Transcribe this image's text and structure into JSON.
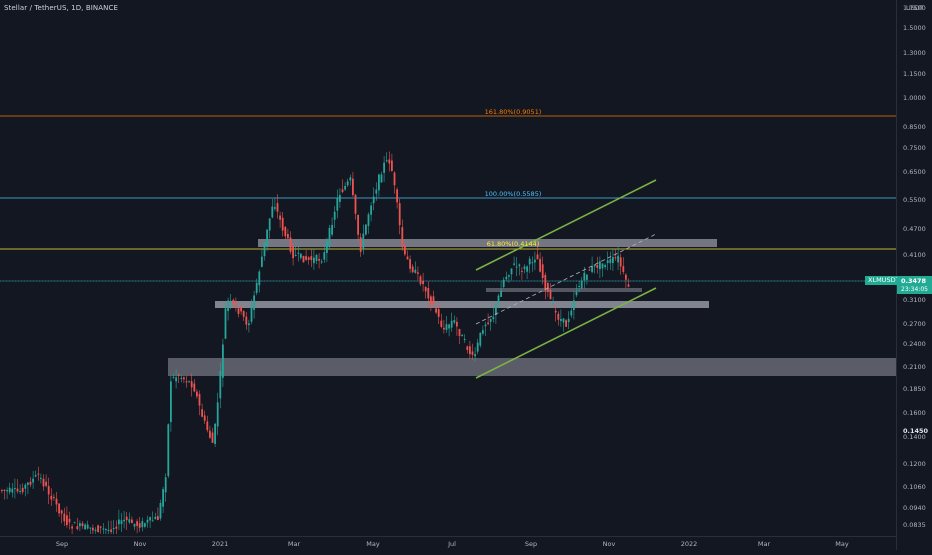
{
  "header": {
    "title": "Stellar / TetherUS, 1D, BINANCE"
  },
  "price_axis": {
    "currency": "USDT",
    "ticks": [
      "1.7500",
      "1.5000",
      "1.3000",
      "1.1500",
      "1.0000",
      "0.8500",
      "0.7500",
      "0.6500",
      "0.5500",
      "0.4700",
      "0.4100",
      "0.3478",
      "0.3100",
      "0.2700",
      "0.2400",
      "0.2100",
      "0.1850",
      "0.1600",
      "0.1450",
      "0.1400",
      "0.1200",
      "0.1060",
      "0.0940",
      "0.0835"
    ],
    "current_price": "0.3478",
    "countdown": "23:34:05"
  },
  "time_axis": {
    "labels": [
      "Sep",
      "Nov",
      "2021",
      "Mar",
      "May",
      "Jul",
      "Sep",
      "Nov",
      "2022",
      "Mar",
      "May"
    ]
  },
  "symbol_badge": "XLMUSDT",
  "fib_labels": [
    {
      "text": "161.80%(0.9051)",
      "color": "#f57c00"
    },
    {
      "text": "100.00%(0.5585)",
      "color": "#4fc3f7"
    },
    {
      "text": "61.80%(0.4144)",
      "color": "#ffeb3b"
    }
  ],
  "colors": {
    "background": "#131722",
    "up": "#26a69a",
    "down": "#ef5350",
    "channel": "#7cb342",
    "zone": "#9598a1",
    "price_line": "#22ab94"
  }
}
